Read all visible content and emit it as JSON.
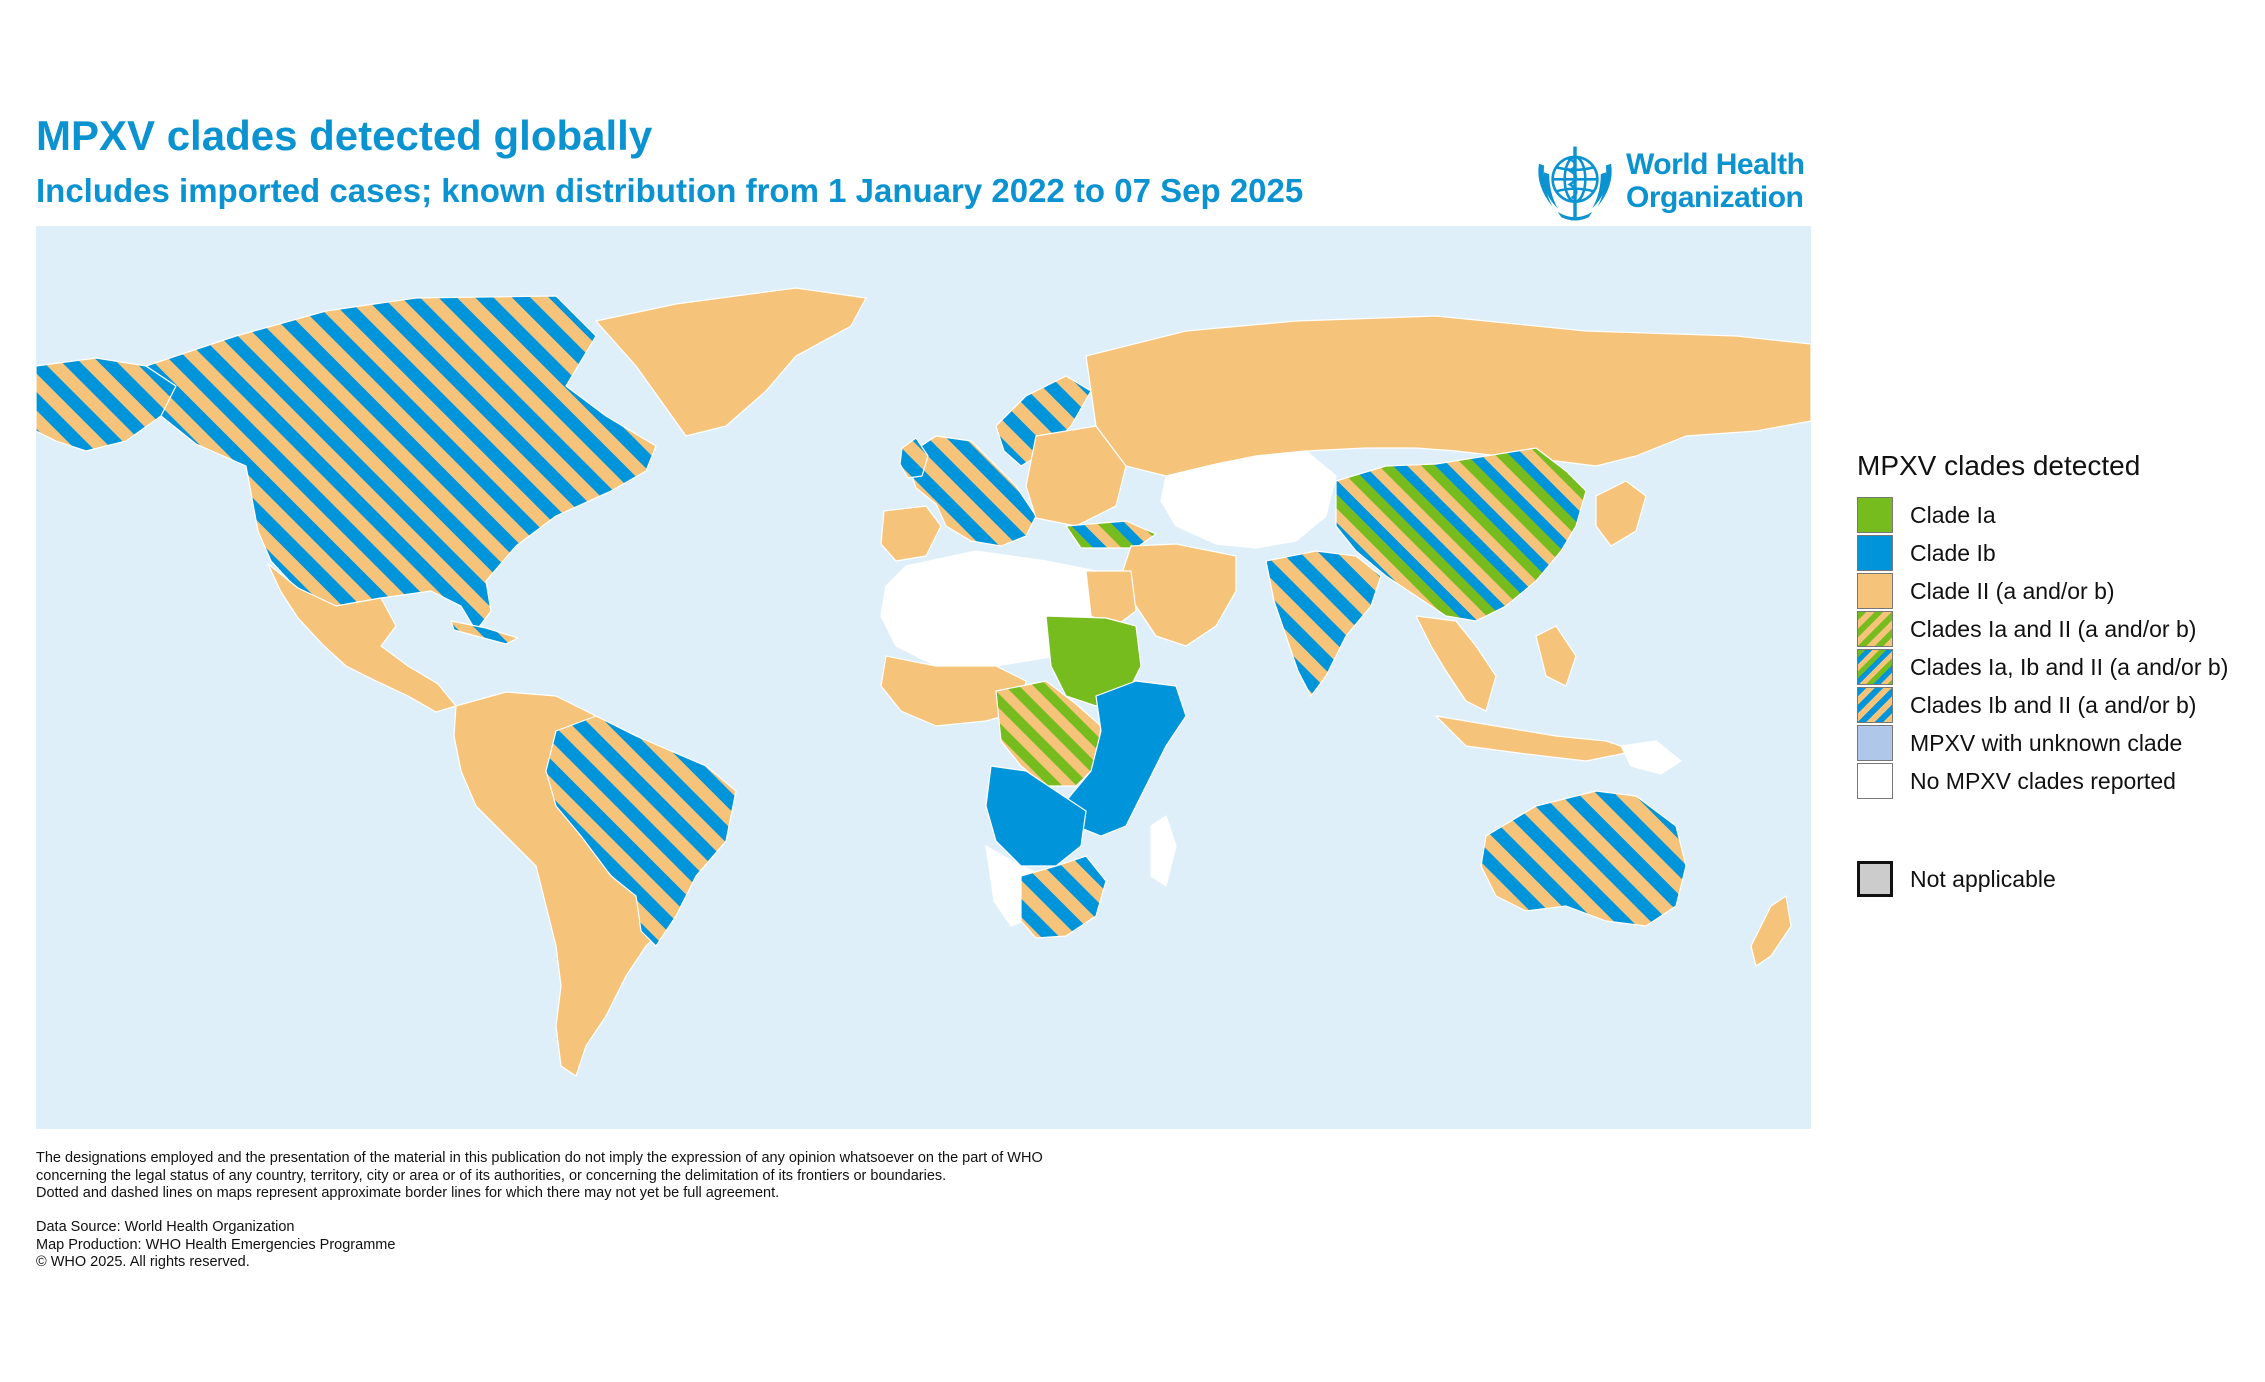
{
  "title": "MPXV clades detected globally",
  "subtitle": "Includes imported cases; known distribution from 1 January 2022 to 07 Sep 2025",
  "logo": {
    "line1": "World Health",
    "line2": "Organization",
    "icon": "who-emblem-icon"
  },
  "legend": {
    "title": "MPXV clades detected",
    "items": [
      {
        "label": "Clade Ia",
        "pattern": "solid",
        "colors": [
          "#77bc1f"
        ]
      },
      {
        "label": "Clade Ib",
        "pattern": "solid",
        "colors": [
          "#0095db"
        ]
      },
      {
        "label": "Clade II (a and/or b)",
        "pattern": "solid",
        "colors": [
          "#f6c37a"
        ]
      },
      {
        "label": "Clades Ia and II (a and/or b)",
        "pattern": "stripes",
        "colors": [
          "#77bc1f",
          "#f6c37a"
        ]
      },
      {
        "label": "Clades Ia, Ib and II (a and/or b)",
        "pattern": "stripes",
        "colors": [
          "#77bc1f",
          "#0095db",
          "#f6c37a"
        ]
      },
      {
        "label": "Clades Ib and II (a and/or b)",
        "pattern": "stripes",
        "colors": [
          "#0095db",
          "#f6c37a"
        ]
      },
      {
        "label": "MPXV with unknown clade",
        "pattern": "solid",
        "colors": [
          "#afc8e9"
        ]
      },
      {
        "label": "No MPXV clades reported",
        "pattern": "solid",
        "colors": [
          "#ffffff"
        ]
      }
    ],
    "not_applicable": {
      "label": "Not applicable",
      "color": "#cccccc"
    }
  },
  "disclaimer": [
    "The designations employed and the presentation of the material in this publication do not imply the expression of any opinion whatsoever on the part of WHO",
    "concerning the legal status of any country, territory, city or area or of its authorities, or concerning the delimitation of its frontiers or boundaries.",
    "Dotted and dashed lines on maps represent approximate border lines for which there may not yet be full agreement."
  ],
  "credits": {
    "source": "Data Source: World Health Organization",
    "production": "Map Production: WHO Health Emergencies Programme",
    "copyright": "© WHO 2025. All rights reserved."
  },
  "map": {
    "ocean_color": "#dfeff9"
  }
}
